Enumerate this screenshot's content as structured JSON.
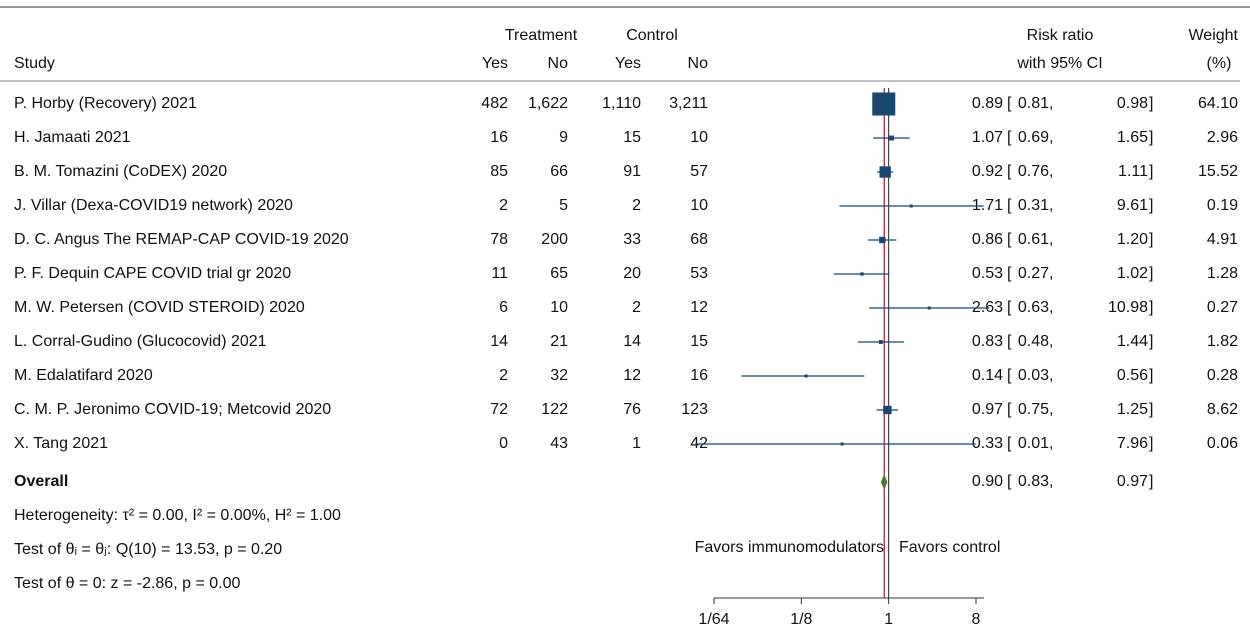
{
  "chart_data": {
    "type": "forest",
    "headers": {
      "study": "Study",
      "treatment": "Treatment",
      "control": "Control",
      "yes": "Yes",
      "no": "No",
      "rr": "Risk ratio",
      "ci": "with 95% CI",
      "weight": "Weight",
      "weight_unit": "(%)"
    },
    "ci_open": "[",
    "ci_sep": ",",
    "ci_close": "]",
    "rows": [
      {
        "study": "P. Horby (Recovery) 2021",
        "treat_yes": 482,
        "treat_no": {
          "value": 1622,
          "label": "1,622"
        },
        "ctrl_yes": {
          "value": 1110,
          "label": "1,110"
        },
        "ctrl_no": {
          "value": 3211,
          "label": "3,211"
        },
        "rr": 0.89,
        "lo": 0.81,
        "hi": 0.98,
        "weight": {
          "value": 64.1,
          "label": "64.10"
        }
      },
      {
        "study": "H. Jamaati 2021",
        "treat_yes": 16,
        "treat_no": 9,
        "ctrl_yes": 15,
        "ctrl_no": 10,
        "rr": 1.07,
        "lo": 0.69,
        "hi": 1.65,
        "weight": 2.96
      },
      {
        "study": "B. M. Tomazini (CoDEX) 2020",
        "treat_yes": 85,
        "treat_no": 66,
        "ctrl_yes": 91,
        "ctrl_no": 57,
        "rr": 0.92,
        "lo": 0.76,
        "hi": 1.11,
        "weight": 15.52
      },
      {
        "study": "J. Villar (Dexa-COVID19 network) 2020",
        "treat_yes": 2,
        "treat_no": 5,
        "ctrl_yes": 2,
        "ctrl_no": 10,
        "rr": 1.71,
        "lo": 0.31,
        "hi": 9.61,
        "weight": 0.19
      },
      {
        "study": "D. C. Angus The REMAP-CAP COVID-19 2020",
        "treat_yes": 78,
        "treat_no": 200,
        "ctrl_yes": 33,
        "ctrl_no": 68,
        "rr": 0.86,
        "lo": 0.61,
        "hi": {
          "value": 1.2,
          "label": "1.20"
        },
        "weight": 4.91
      },
      {
        "study": "P. F. Dequin CAPE COVID trial gr 2020",
        "treat_yes": 11,
        "treat_no": 65,
        "ctrl_yes": 20,
        "ctrl_no": 53,
        "rr": 0.53,
        "lo": 0.27,
        "hi": 1.02,
        "weight": 1.28
      },
      {
        "study": "M. W. Petersen (COVID STEROID) 2020",
        "treat_yes": 6,
        "treat_no": 10,
        "ctrl_yes": 2,
        "ctrl_no": 12,
        "rr": 2.63,
        "lo": 0.63,
        "hi": 10.98,
        "weight": 0.27
      },
      {
        "study": "L. Corral-Gudino (Glucocovid) 2021",
        "treat_yes": 14,
        "treat_no": 21,
        "ctrl_yes": 14,
        "ctrl_no": 15,
        "rr": 0.83,
        "lo": 0.48,
        "hi": 1.44,
        "weight": 1.82
      },
      {
        "study": "M. Edalatifard 2020",
        "treat_yes": 2,
        "treat_no": 32,
        "ctrl_yes": 12,
        "ctrl_no": 16,
        "rr": 0.14,
        "lo": 0.03,
        "hi": 0.56,
        "weight": 0.28
      },
      {
        "study": "C. M. P. Jeronimo COVID-19; Metcovid 2020",
        "treat_yes": 72,
        "treat_no": 122,
        "ctrl_yes": 76,
        "ctrl_no": 123,
        "rr": 0.97,
        "lo": 0.75,
        "hi": 1.25,
        "weight": 8.62
      },
      {
        "study": "X. Tang 2021",
        "treat_yes": 0,
        "treat_no": 43,
        "ctrl_yes": 1,
        "ctrl_no": 42,
        "rr": 0.33,
        "lo": 0.01,
        "hi": 7.96,
        "weight": 0.06
      }
    ],
    "overall": {
      "label": "Overall",
      "rr": {
        "value": 0.9,
        "label": "0.90"
      },
      "lo": 0.83,
      "hi": 0.97
    },
    "notes": [
      "Heterogeneity: τ² = 0.00, I² = 0.00%, H² = 1.00",
      "Test of θᵢ = θⱼ: Q(10) = 13.53, p = 0.20",
      "Test of θ = 0: z = -2.86, p = 0.00"
    ],
    "favors_left": "Favors immunomodulators",
    "favors_right": "Favors control",
    "xscale": "log",
    "xlim": [
      0.015625,
      8
    ],
    "xticks": [
      {
        "value": 0.015625,
        "label": "1/64"
      },
      {
        "value": 0.125,
        "label": "1/8"
      },
      1,
      8
    ],
    "null_value": 1,
    "color": "#1a476f",
    "overall_color": "#55752f",
    "overall_line_color": "#c10534"
  }
}
